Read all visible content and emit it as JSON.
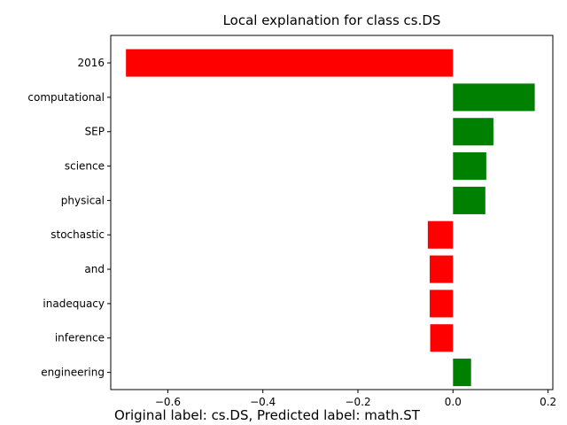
{
  "chart_data": {
    "type": "bar",
    "orientation": "horizontal",
    "title": "Local explanation for class cs.DS",
    "xlabel": "",
    "ylabel": "",
    "categories": [
      "2016",
      "computational",
      "SEP",
      "science",
      "physical",
      "stochastic",
      "and",
      "inadequacy",
      "inference",
      "engineering"
    ],
    "values": [
      -0.688,
      0.172,
      0.085,
      0.07,
      0.068,
      -0.053,
      -0.049,
      -0.049,
      -0.048,
      0.038
    ],
    "xlim": [
      -0.72,
      0.21
    ],
    "xticks": [
      -0.6,
      -0.4,
      -0.2,
      0.0,
      0.2
    ],
    "xtick_labels": [
      "−0.6",
      "−0.4",
      "−0.2",
      "0.0",
      "0.2"
    ],
    "positive_color": "#008000",
    "negative_color": "#ff0000",
    "grid": false
  },
  "caption": "Original label: cs.DS, Predicted label: math.ST"
}
